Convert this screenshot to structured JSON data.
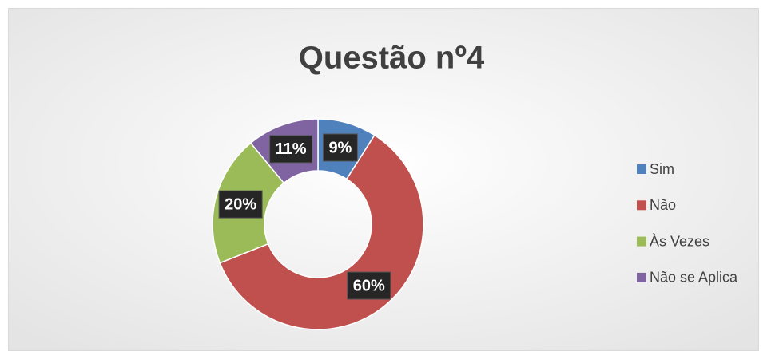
{
  "chart_data": {
    "type": "donut",
    "title": "Questão nº4",
    "categories": [
      "Sim",
      "Não",
      "Às Vezes",
      "Não se Aplica"
    ],
    "values": [
      9,
      60,
      20,
      11
    ],
    "value_labels": [
      "9%",
      "60%",
      "20%",
      "11%"
    ],
    "colors": [
      "#4f81bd",
      "#c0504d",
      "#9bbb59",
      "#8064a2"
    ],
    "legend": "right"
  }
}
